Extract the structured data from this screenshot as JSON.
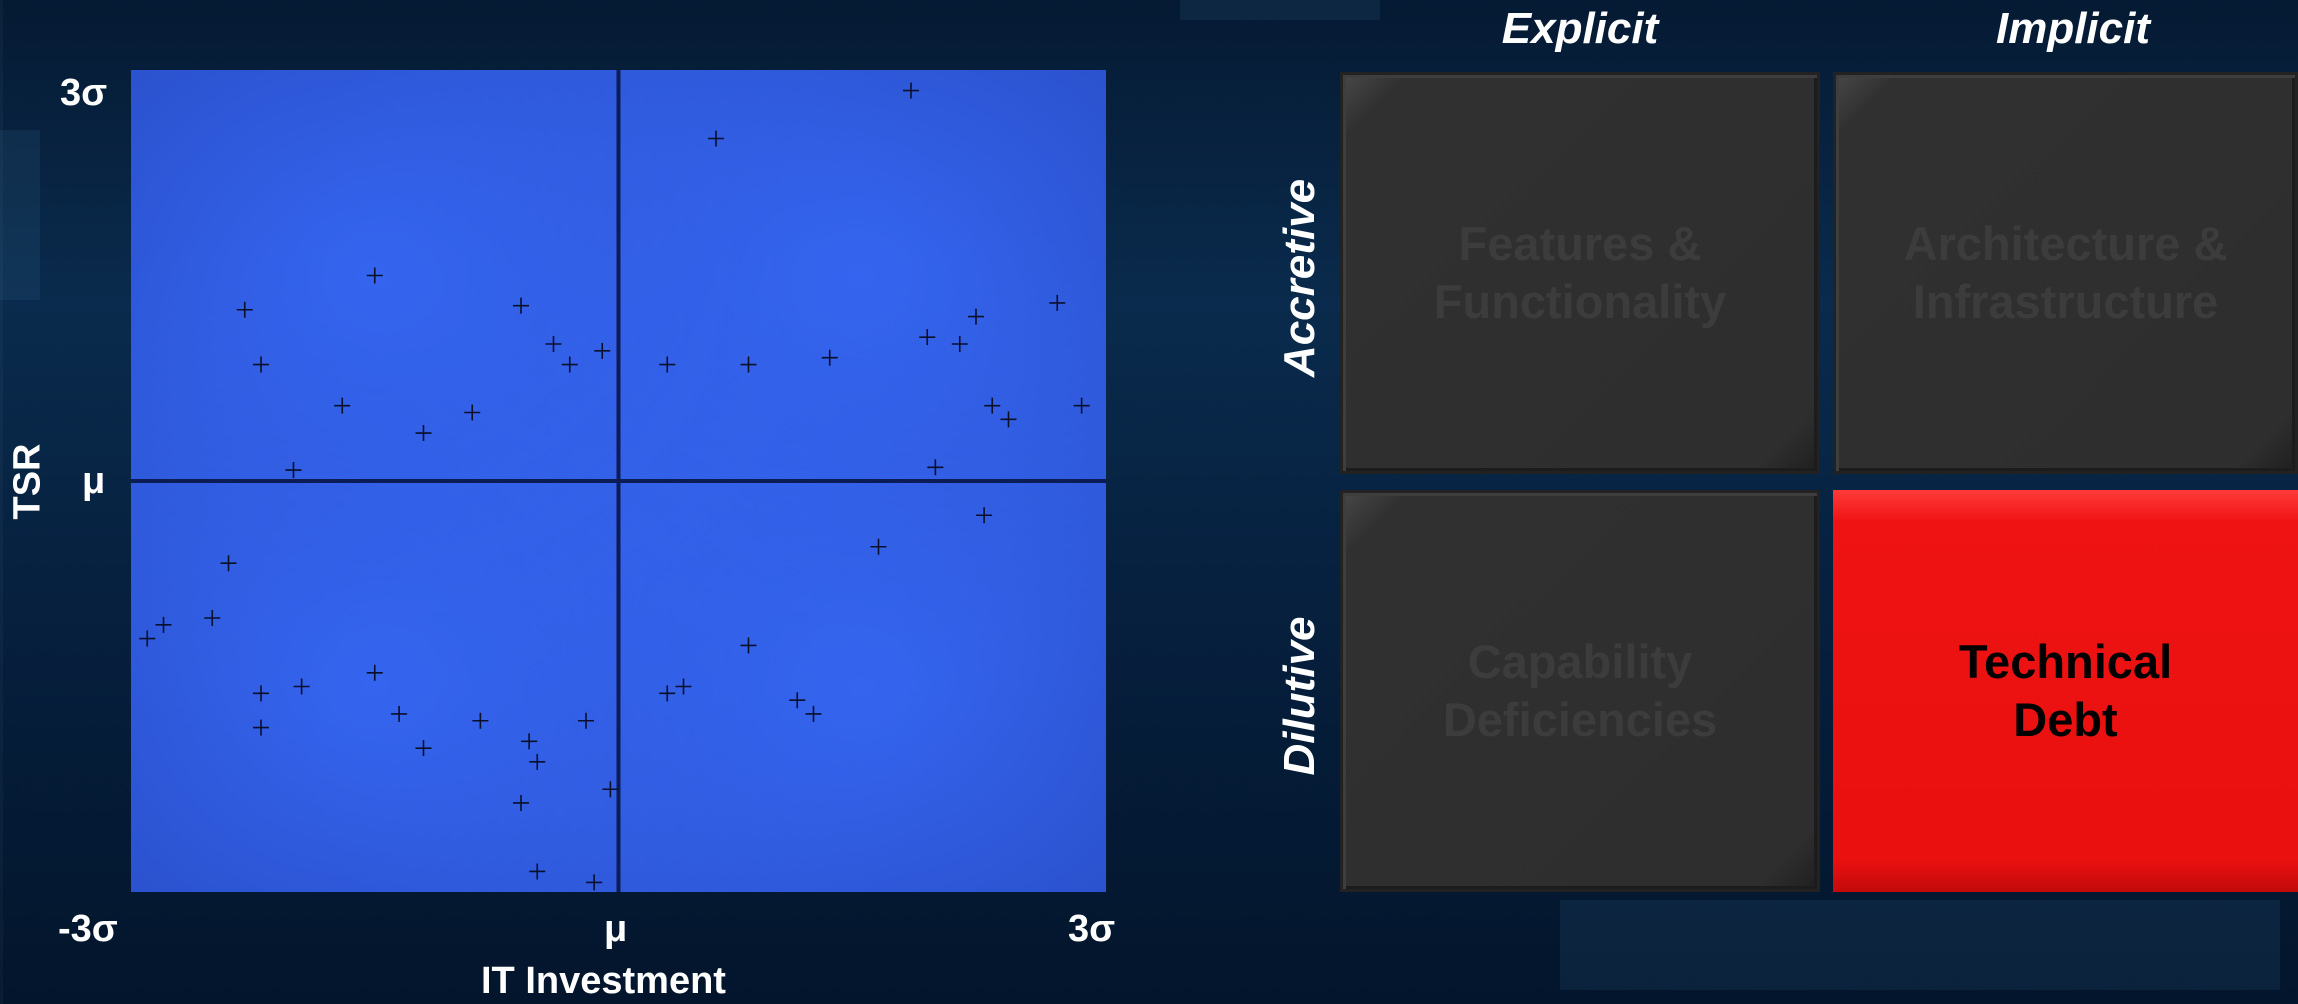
{
  "chart_data": {
    "type": "scatter",
    "xlabel": "IT Investment",
    "ylabel": "TSR",
    "x_ticks": [
      "-3σ",
      "μ",
      "3σ"
    ],
    "y_ticks": [
      "3σ",
      "μ"
    ],
    "xlim": [
      -3,
      3
    ],
    "ylim": [
      -3,
      3
    ],
    "marker": "+",
    "points": [
      [
        1.8,
        2.85
      ],
      [
        0.6,
        2.5
      ],
      [
        -1.5,
        1.5
      ],
      [
        -0.6,
        1.28
      ],
      [
        -2.3,
        1.25
      ],
      [
        2.7,
        1.3
      ],
      [
        2.2,
        1.2
      ],
      [
        1.9,
        1.05
      ],
      [
        2.1,
        1.0
      ],
      [
        -2.2,
        0.85
      ],
      [
        -1.7,
        0.55
      ],
      [
        -0.4,
        1.0
      ],
      [
        -0.3,
        0.85
      ],
      [
        -0.1,
        0.95
      ],
      [
        0.3,
        0.85
      ],
      [
        0.8,
        0.85
      ],
      [
        1.3,
        0.9
      ],
      [
        2.85,
        0.55
      ],
      [
        -2.0,
        0.08
      ],
      [
        -1.2,
        0.35
      ],
      [
        -0.9,
        0.5
      ],
      [
        2.4,
        0.45
      ],
      [
        2.3,
        0.55
      ],
      [
        1.95,
        0.1
      ],
      [
        2.25,
        -0.25
      ],
      [
        1.6,
        -0.48
      ],
      [
        -2.8,
        -1.05
      ],
      [
        -2.9,
        -1.15
      ],
      [
        -2.4,
        -0.6
      ],
      [
        -2.5,
        -1.0
      ],
      [
        -2.2,
        -1.55
      ],
      [
        -2.2,
        -1.8
      ],
      [
        -1.95,
        -1.5
      ],
      [
        -1.5,
        -1.4
      ],
      [
        -1.35,
        -1.7
      ],
      [
        -1.2,
        -1.95
      ],
      [
        -0.85,
        -1.75
      ],
      [
        -0.55,
        -1.9
      ],
      [
        -0.5,
        -2.05
      ],
      [
        -0.6,
        -2.35
      ],
      [
        -0.2,
        -1.75
      ],
      [
        -0.05,
        -2.25
      ],
      [
        -0.5,
        -2.85
      ],
      [
        -0.15,
        -2.93
      ],
      [
        1.1,
        -1.6
      ],
      [
        1.2,
        -1.7
      ],
      [
        0.4,
        -1.5
      ],
      [
        0.3,
        -1.55
      ],
      [
        0.8,
        -1.2
      ]
    ]
  },
  "axes": {
    "y_top": "3σ",
    "y_mid": "μ",
    "y_title": "TSR",
    "x_left": "-3σ",
    "x_mid": "μ",
    "x_right": "3σ",
    "x_title": "IT Investment"
  },
  "matrix": {
    "columns": [
      "Explicit",
      "Implicit"
    ],
    "rows": [
      "Accretive",
      "Dilutive"
    ],
    "cells": {
      "top_left": "Features & Functionality",
      "top_right": "Architecture & Infrastructure",
      "bottom_left": "Capability Deficiencies",
      "bottom_right": "Technical Debt"
    },
    "highlight_color": "#ee1111"
  }
}
